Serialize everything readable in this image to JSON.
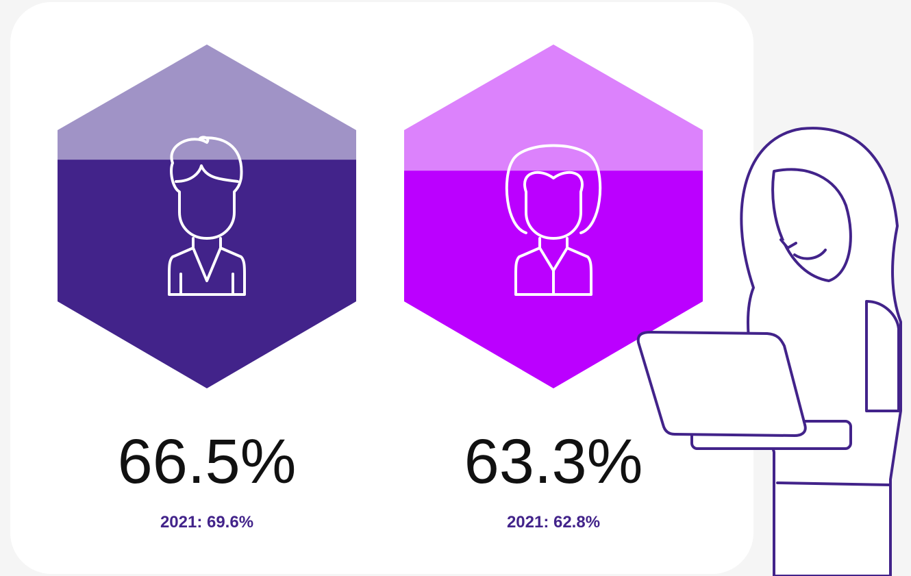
{
  "chart_data": {
    "type": "hexfill",
    "ylim": [
      0,
      100
    ],
    "series": [
      {
        "color": "#42238a",
        "empty_color": "#a093c6",
        "values": [
          66.5
        ],
        "value_labels": [
          "66.5%"
        ],
        "note": "2021: 69.6%"
      },
      {
        "color": "#bb00ff",
        "empty_color": "#dc82fc",
        "values": [
          63.3
        ],
        "value_labels": [
          "63.3%"
        ],
        "note": "2021: 62.8%"
      }
    ]
  }
}
